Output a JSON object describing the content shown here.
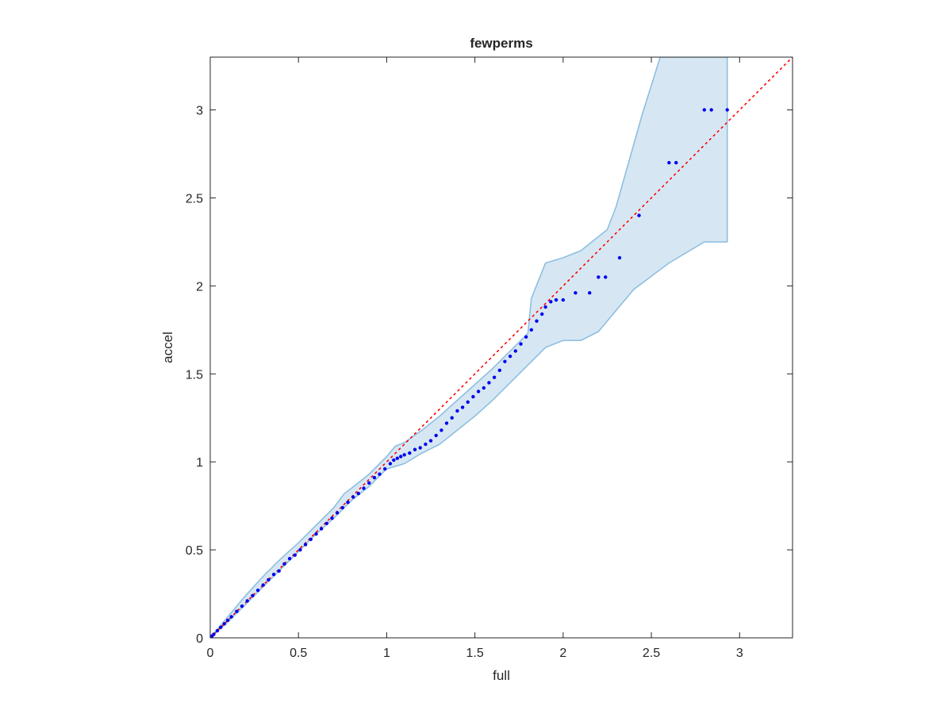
{
  "chart_data": {
    "type": "scatter",
    "title": "fewperms",
    "xlabel": "full",
    "ylabel": "accel",
    "xlim": [
      0,
      3.3
    ],
    "ylim": [
      0,
      3.3
    ],
    "xticks": [
      "0",
      "0.5",
      "1",
      "1.5",
      "2",
      "2.5",
      "3"
    ],
    "yticks": [
      "0",
      "0.5",
      "1",
      "1.5",
      "2",
      "2.5",
      "3"
    ],
    "grid": false,
    "colors": {
      "points": "#0000ee",
      "reference": "#ff0000",
      "band_fill": "#d6e7f3",
      "band_edge": "#8ebfe0"
    },
    "reference_line": {
      "x": [
        0,
        3.3
      ],
      "y": [
        0,
        3.3
      ],
      "style": "dotted"
    },
    "band": {
      "upper": [
        [
          0,
          0
        ],
        [
          0.1,
          0.12
        ],
        [
          0.2,
          0.24
        ],
        [
          0.3,
          0.35
        ],
        [
          0.4,
          0.45
        ],
        [
          0.5,
          0.54
        ],
        [
          0.6,
          0.64
        ],
        [
          0.7,
          0.74
        ],
        [
          0.76,
          0.82
        ],
        [
          0.8,
          0.85
        ],
        [
          0.9,
          0.93
        ],
        [
          1.0,
          1.03
        ],
        [
          1.05,
          1.09
        ],
        [
          1.1,
          1.11
        ],
        [
          1.2,
          1.18
        ],
        [
          1.3,
          1.26
        ],
        [
          1.4,
          1.35
        ],
        [
          1.5,
          1.44
        ],
        [
          1.6,
          1.53
        ],
        [
          1.7,
          1.63
        ],
        [
          1.8,
          1.73
        ],
        [
          1.82,
          1.93
        ],
        [
          1.88,
          2.08
        ],
        [
          1.9,
          2.13
        ],
        [
          2.0,
          2.16
        ],
        [
          2.1,
          2.2
        ],
        [
          2.15,
          2.24
        ],
        [
          2.25,
          2.32
        ],
        [
          2.3,
          2.45
        ],
        [
          2.45,
          2.98
        ],
        [
          2.55,
          3.3
        ],
        [
          2.93,
          3.3
        ]
      ],
      "lower": [
        [
          2.93,
          2.25
        ],
        [
          2.8,
          2.25
        ],
        [
          2.6,
          2.13
        ],
        [
          2.4,
          1.98
        ],
        [
          2.2,
          1.74
        ],
        [
          2.1,
          1.69
        ],
        [
          2.0,
          1.69
        ],
        [
          1.9,
          1.65
        ],
        [
          1.8,
          1.55
        ],
        [
          1.7,
          1.45
        ],
        [
          1.6,
          1.35
        ],
        [
          1.5,
          1.26
        ],
        [
          1.4,
          1.18
        ],
        [
          1.3,
          1.1
        ],
        [
          1.2,
          1.05
        ],
        [
          1.1,
          0.99
        ],
        [
          1.0,
          0.96
        ],
        [
          0.9,
          0.86
        ],
        [
          0.8,
          0.78
        ],
        [
          0.7,
          0.68
        ],
        [
          0.6,
          0.59
        ],
        [
          0.5,
          0.49
        ],
        [
          0.4,
          0.39
        ],
        [
          0.3,
          0.29
        ],
        [
          0.2,
          0.19
        ],
        [
          0.1,
          0.09
        ],
        [
          0,
          0
        ]
      ]
    },
    "points": [
      [
        0.01,
        0.01
      ],
      [
        0.02,
        0.02
      ],
      [
        0.04,
        0.04
      ],
      [
        0.06,
        0.06
      ],
      [
        0.08,
        0.08
      ],
      [
        0.1,
        0.1
      ],
      [
        0.12,
        0.12
      ],
      [
        0.15,
        0.15
      ],
      [
        0.18,
        0.18
      ],
      [
        0.21,
        0.21
      ],
      [
        0.24,
        0.24
      ],
      [
        0.27,
        0.27
      ],
      [
        0.3,
        0.3
      ],
      [
        0.33,
        0.33
      ],
      [
        0.36,
        0.36
      ],
      [
        0.39,
        0.38
      ],
      [
        0.42,
        0.42
      ],
      [
        0.45,
        0.45
      ],
      [
        0.48,
        0.47
      ],
      [
        0.51,
        0.5
      ],
      [
        0.54,
        0.53
      ],
      [
        0.57,
        0.56
      ],
      [
        0.6,
        0.59
      ],
      [
        0.63,
        0.62
      ],
      [
        0.66,
        0.65
      ],
      [
        0.69,
        0.68
      ],
      [
        0.72,
        0.71
      ],
      [
        0.75,
        0.74
      ],
      [
        0.78,
        0.77
      ],
      [
        0.81,
        0.8
      ],
      [
        0.84,
        0.82
      ],
      [
        0.87,
        0.85
      ],
      [
        0.9,
        0.88
      ],
      [
        0.93,
        0.91
      ],
      [
        0.96,
        0.93
      ],
      [
        0.99,
        0.96
      ],
      [
        1.02,
        0.99
      ],
      [
        1.04,
        1.01
      ],
      [
        1.06,
        1.02
      ],
      [
        1.08,
        1.03
      ],
      [
        1.1,
        1.04
      ],
      [
        1.13,
        1.05
      ],
      [
        1.16,
        1.07
      ],
      [
        1.19,
        1.08
      ],
      [
        1.22,
        1.1
      ],
      [
        1.25,
        1.12
      ],
      [
        1.28,
        1.15
      ],
      [
        1.31,
        1.18
      ],
      [
        1.34,
        1.22
      ],
      [
        1.37,
        1.25
      ],
      [
        1.4,
        1.29
      ],
      [
        1.43,
        1.31
      ],
      [
        1.46,
        1.34
      ],
      [
        1.49,
        1.37
      ],
      [
        1.52,
        1.4
      ],
      [
        1.55,
        1.42
      ],
      [
        1.58,
        1.45
      ],
      [
        1.61,
        1.48
      ],
      [
        1.64,
        1.52
      ],
      [
        1.67,
        1.57
      ],
      [
        1.7,
        1.6
      ],
      [
        1.73,
        1.63
      ],
      [
        1.76,
        1.67
      ],
      [
        1.79,
        1.71
      ],
      [
        1.82,
        1.75
      ],
      [
        1.85,
        1.8
      ],
      [
        1.88,
        1.84
      ],
      [
        1.9,
        1.88
      ],
      [
        1.93,
        1.91
      ],
      [
        1.96,
        1.92
      ],
      [
        2.0,
        1.92
      ],
      [
        2.07,
        1.96
      ],
      [
        2.15,
        1.96
      ],
      [
        2.2,
        2.05
      ],
      [
        2.24,
        2.05
      ],
      [
        2.32,
        2.16
      ],
      [
        2.43,
        2.4
      ],
      [
        2.6,
        2.7
      ],
      [
        2.64,
        2.7
      ],
      [
        2.8,
        3.0
      ],
      [
        2.84,
        3.0
      ],
      [
        2.93,
        3.0
      ]
    ]
  }
}
